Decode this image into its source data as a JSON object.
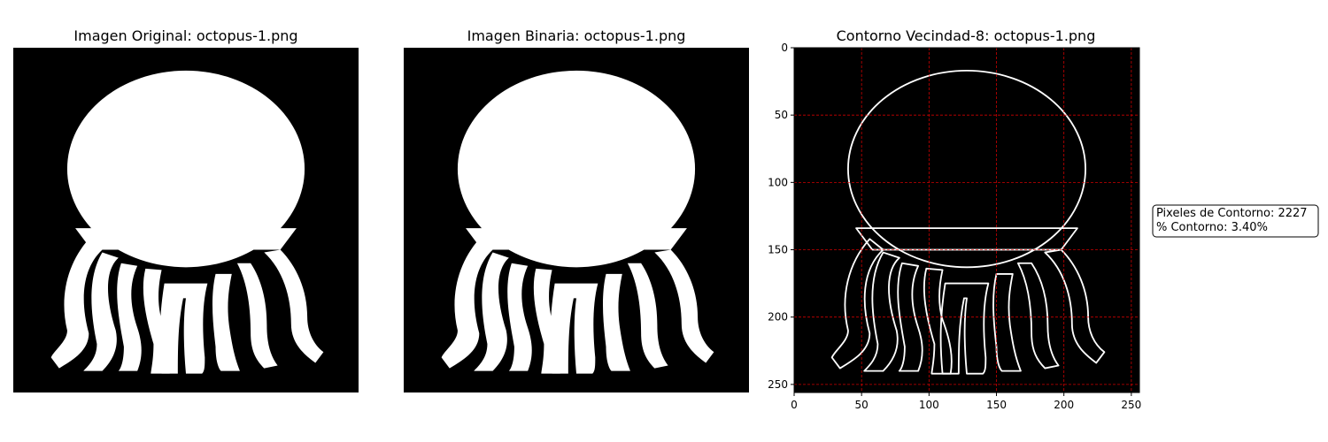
{
  "figure": {
    "panels": [
      {
        "title": "Imagen Original: octopus-1.png"
      },
      {
        "title": "Imagen Binaria: octopus-1.png"
      },
      {
        "title": "Contorno Vecindad-8: octopus-1.png"
      }
    ],
    "contour_axes": {
      "x_ticks": [
        "0",
        "50",
        "100",
        "150",
        "200",
        "250"
      ],
      "y_ticks": [
        "0",
        "50",
        "100",
        "150",
        "200",
        "250"
      ],
      "grid": "on",
      "grid_color": "#ff0000",
      "xlim": [
        0,
        256
      ],
      "ylim": [
        256,
        0
      ]
    },
    "stats": {
      "contour_pixels": "Pixeles de Contorno: 2227",
      "contour_percent": "% Contorno: 3.40%"
    },
    "colors": {
      "background": "#000000",
      "foreground": "#ffffff"
    }
  }
}
